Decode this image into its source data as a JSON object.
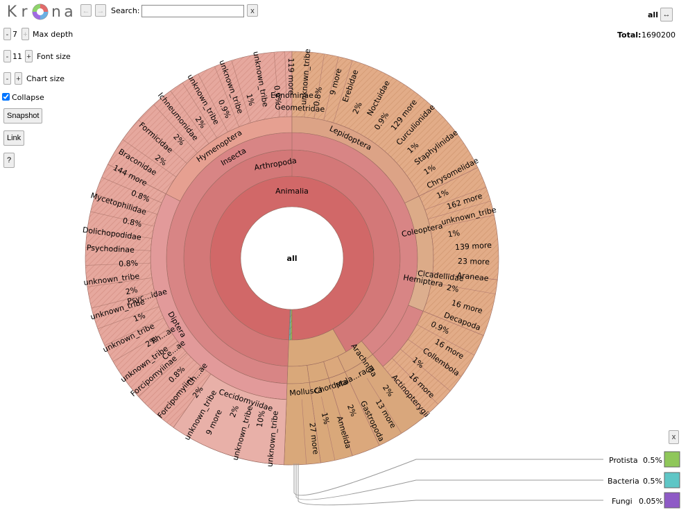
{
  "logo": {
    "letters": [
      "K",
      "r",
      "n",
      "a"
    ]
  },
  "nav": {
    "back": "←",
    "forward": "→"
  },
  "search": {
    "label": "Search:",
    "value": "",
    "clear": "x"
  },
  "controls": {
    "max_depth": {
      "minus": "-",
      "value": "7",
      "plus": "+",
      "label": "Max depth"
    },
    "font_size": {
      "minus": "-",
      "value": "11",
      "plus": "+",
      "label": "Font size"
    },
    "chart_size": {
      "minus": "-",
      "plus": "+",
      "label": "Chart size"
    },
    "collapse": {
      "label": "Collapse",
      "checked": true
    },
    "snapshot": "Snapshot",
    "link": "Link",
    "help": "?"
  },
  "header_right": {
    "focus": "all",
    "toggle": "↔",
    "total_label": "Total:",
    "total_value": "1690200"
  },
  "center": "all",
  "key": {
    "close": "x",
    "items": [
      {
        "name": "Protista",
        "pct": "0.5%",
        "color": "#8fc75a"
      },
      {
        "name": "Bacteria",
        "pct": "0.5%",
        "color": "#5ec6c6"
      },
      {
        "name": "Fungi",
        "pct": "0.05%",
        "color": "#8e5ac6"
      }
    ]
  },
  "colors": {
    "animalia": "#d16868",
    "arthropoda": "#d37878",
    "insecta": "#d88585",
    "diptera": "#e29a9a",
    "hymenoptera": "#e6a091",
    "lepidoptera": "#dca386",
    "coleoptera": "#dcab88",
    "hemiptera": "#dcae8e",
    "arachnida": "#d9a77c",
    "mollusca": "#d9a87a",
    "chordata": "#d9a87a",
    "malacostraca": "#dba87c",
    "outer_pink": "#e8b0a8",
    "outer_orange": "#e3b391",
    "leaf": "#dba586"
  },
  "chart_data": {
    "type": "sunburst",
    "levels": [
      {
        "level": 1,
        "segments": [
          {
            "label": "Animalia"
          }
        ]
      },
      {
        "level": 2,
        "segments": [
          {
            "label": "Arthropoda"
          }
        ]
      },
      {
        "level": 3,
        "segments": [
          {
            "label": "Insecta"
          },
          {
            "label": "Mala...raca"
          },
          {
            "label": "Chordata"
          },
          {
            "label": "Mollusca"
          },
          {
            "label": "Arachnida"
          }
        ]
      },
      {
        "level": 4,
        "segments": [
          {
            "label": "Diptera"
          },
          {
            "label": "Hymenoptera"
          },
          {
            "label": "Lepidoptera"
          },
          {
            "label": "Coleoptera"
          },
          {
            "label": "Hemiptera"
          }
        ]
      },
      {
        "level": 5,
        "segments": [
          {
            "label": "Cecidomyiidae"
          },
          {
            "label": "Ch...ae"
          },
          {
            "label": "Ce...ae"
          },
          {
            "label": "Ph...ae"
          },
          {
            "label": "Psyc...idae"
          },
          {
            "label": "Ennominae"
          },
          {
            "label": "Geometridae"
          },
          {
            "label": "Cicadellidae"
          }
        ]
      }
    ],
    "outer_labels": [
      "unknown_tribe",
      "10%",
      "unknown_tribe",
      "2%",
      "9 more",
      "unknown_tribe",
      "2%",
      "Forcipomyiini",
      "0.8%",
      "Forcipomyiinae",
      "unknown_tribe",
      "2%",
      "unknown_tribe",
      "1%",
      "unknown_tribe",
      "2%",
      "unknown_tribe",
      "0.8%",
      "Psychodinae",
      "Dolichopodidae",
      "0.8%",
      "Mycetophilidae",
      "0.8%",
      "144 more",
      "Braconidae",
      "2%",
      "Formicidae",
      "2%",
      "Ichneumonidae",
      "2%",
      "unknown_tribe",
      "0.9%",
      "unknown_tribe",
      "1%",
      "unknown_tribe",
      "0.9%",
      "119 more",
      "unknown_tribe",
      "0.8%",
      "9 more",
      "Erebidae",
      "2%",
      "Noctuidae",
      "0.9%",
      "129 more",
      "Curculionidae",
      "1%",
      "Staphylinidae",
      "1%",
      "Chrysomelidae",
      "1%",
      "162 more",
      "unknown_tribe",
      "1%",
      "139 more",
      "23 more",
      "Araneae",
      "2%",
      "16 more",
      "Decapoda",
      "0.9%",
      "16 more",
      "Collembola",
      "1%",
      "16 more",
      "Actinopterygii",
      "2%",
      "13 more",
      "Gastropoda",
      "2%",
      "Annelida",
      "1%",
      "27 more"
    ],
    "root_slices": [
      {
        "label": "Animalia",
        "pct": 98.95
      },
      {
        "label": "Protista",
        "pct": 0.5
      },
      {
        "label": "Bacteria",
        "pct": 0.5
      },
      {
        "label": "Fungi",
        "pct": 0.05
      }
    ]
  }
}
